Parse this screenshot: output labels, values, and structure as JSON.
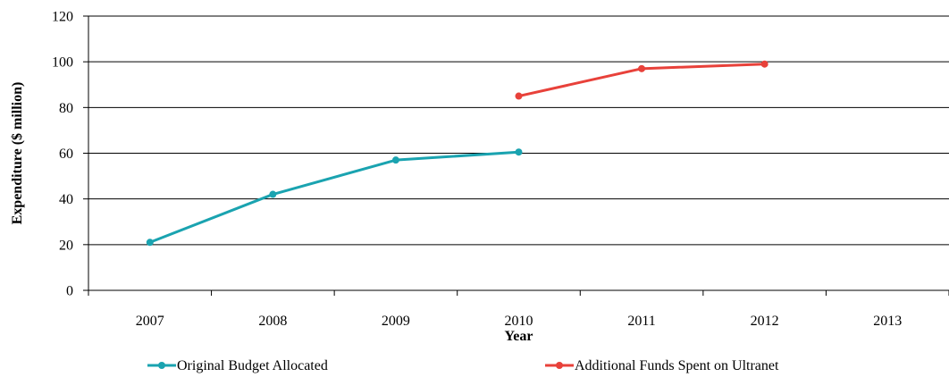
{
  "chart_data": {
    "type": "line",
    "title": "",
    "xlabel": "Year",
    "ylabel": "Expenditure ($ million)",
    "categories": [
      "2007",
      "2008",
      "2009",
      "2010",
      "2011",
      "2012",
      "2013"
    ],
    "ylim": [
      0,
      120
    ],
    "yticks": [
      "0",
      "20",
      "40",
      "60",
      "80",
      "100",
      "120"
    ],
    "grid": "horizontal",
    "legend_position": "bottom",
    "series": [
      {
        "name": "Original Budget Allocated",
        "color": "#1aa3b0",
        "values": [
          21,
          42,
          57,
          60.5,
          null,
          null,
          null
        ]
      },
      {
        "name": "Additional Funds Spent on Ultranet",
        "color": "#e8413a",
        "values": [
          null,
          null,
          null,
          85,
          97,
          99,
          null
        ]
      }
    ]
  }
}
